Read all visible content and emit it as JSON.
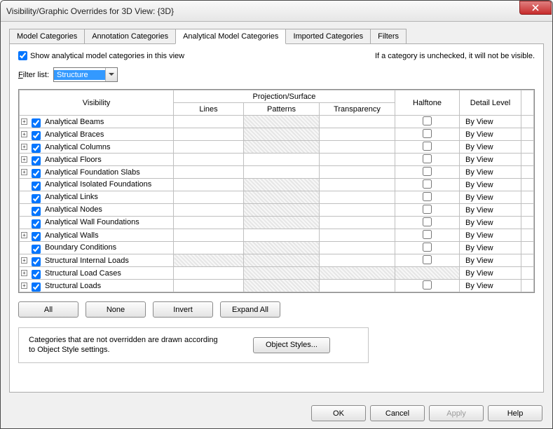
{
  "title": "Visibility/Graphic Overrides for 3D View: {3D}",
  "tabs": [
    "Model Categories",
    "Annotation Categories",
    "Analytical Model Categories",
    "Imported Categories",
    "Filters"
  ],
  "panel": {
    "show_label": "Show analytical model categories in this view",
    "hint": "If a category is unchecked, it will not be visible.",
    "filter_label": "Filter list:",
    "filter_value": "Structure"
  },
  "table": {
    "headers": {
      "visibility": "Visibility",
      "projection": "Projection/Surface",
      "lines": "Lines",
      "patterns": "Patterns",
      "transparency": "Transparency",
      "halftone": "Halftone",
      "detail_level": "Detail Level"
    },
    "rows": [
      {
        "expand": true,
        "checked": true,
        "name": "Analytical Beams",
        "patterns_hatched": true,
        "halftone": "unchecked",
        "detail": "By View"
      },
      {
        "expand": true,
        "checked": true,
        "name": "Analytical Braces",
        "patterns_hatched": true,
        "halftone": "unchecked",
        "detail": "By View"
      },
      {
        "expand": true,
        "checked": true,
        "name": "Analytical Columns",
        "patterns_hatched": true,
        "halftone": "unchecked",
        "detail": "By View"
      },
      {
        "expand": true,
        "checked": true,
        "name": "Analytical Floors",
        "patterns_hatched": false,
        "halftone": "unchecked",
        "detail": "By View"
      },
      {
        "expand": true,
        "checked": true,
        "name": "Analytical Foundation Slabs",
        "patterns_hatched": false,
        "halftone": "unchecked",
        "detail": "By View"
      },
      {
        "expand": false,
        "checked": true,
        "name": "Analytical Isolated Foundations",
        "patterns_hatched": true,
        "halftone": "unchecked",
        "detail": "By View"
      },
      {
        "expand": false,
        "checked": true,
        "name": "Analytical Links",
        "patterns_hatched": true,
        "halftone": "unchecked",
        "detail": "By View"
      },
      {
        "expand": false,
        "checked": true,
        "name": "Analytical Nodes",
        "patterns_hatched": true,
        "halftone": "unchecked",
        "detail": "By View"
      },
      {
        "expand": false,
        "checked": true,
        "name": "Analytical Wall Foundations",
        "patterns_hatched": true,
        "halftone": "unchecked",
        "detail": "By View"
      },
      {
        "expand": true,
        "checked": true,
        "name": "Analytical Walls",
        "patterns_hatched": false,
        "halftone": "unchecked",
        "detail": "By View"
      },
      {
        "expand": false,
        "checked": true,
        "name": "Boundary Conditions",
        "patterns_hatched": true,
        "halftone": "unchecked",
        "detail": "By View"
      },
      {
        "expand": true,
        "checked": true,
        "name": "Structural Internal Loads",
        "lines_hatched": true,
        "patterns_hatched": true,
        "halftone": "unchecked",
        "detail": "By View"
      },
      {
        "expand": true,
        "checked": true,
        "name": "Structural Load Cases",
        "patterns_hatched": true,
        "trans_hatched": true,
        "halftone": "hatched",
        "detail": "By View"
      },
      {
        "expand": true,
        "checked": true,
        "name": "Structural Loads",
        "patterns_hatched": true,
        "halftone": "unchecked",
        "detail": "By View"
      }
    ]
  },
  "buttons": {
    "all": "All",
    "none": "None",
    "invert": "Invert",
    "expand_all": "Expand All"
  },
  "info": {
    "text": "Categories that are not overridden are drawn according to Object Style settings.",
    "button": "Object Styles..."
  },
  "footer": {
    "ok": "OK",
    "cancel": "Cancel",
    "apply": "Apply",
    "help": "Help"
  },
  "colors": {
    "selection_bg": "#3399ff",
    "hatched_light": "#f7f7f7",
    "hatched_dark": "#e6e6e6",
    "border": "#bfbfbf"
  }
}
